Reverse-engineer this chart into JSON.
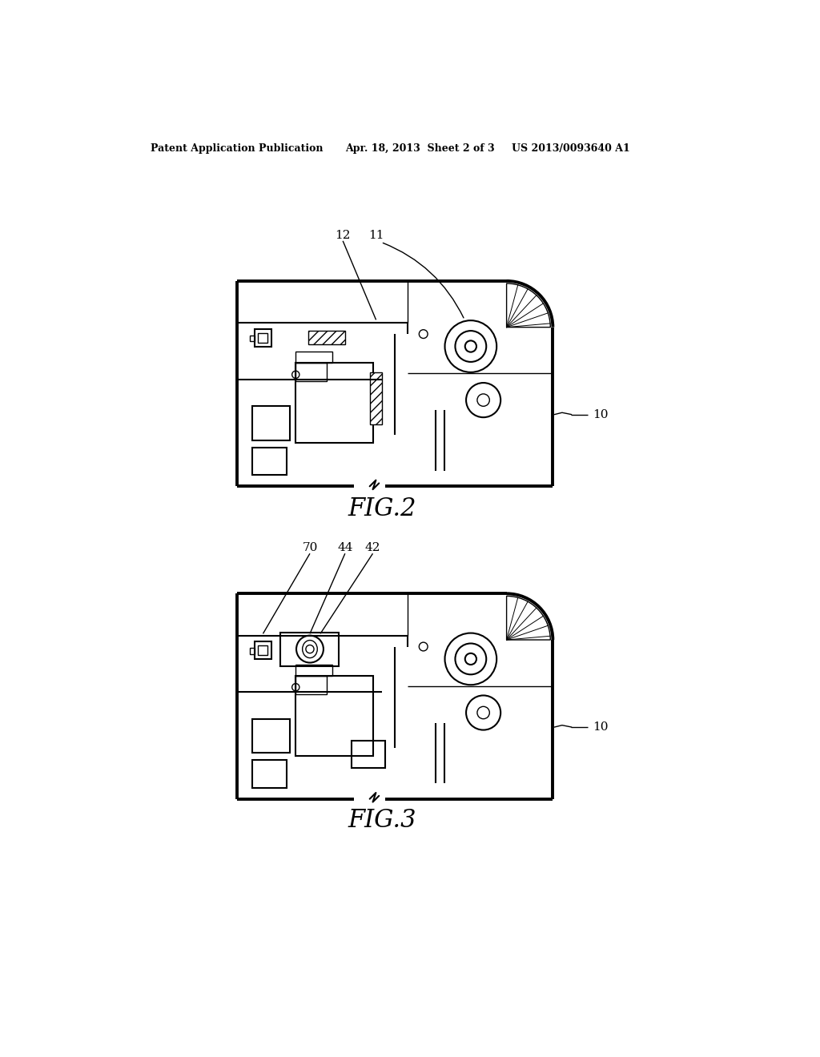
{
  "bg_color": "#ffffff",
  "header_left": "Patent Application Publication",
  "header_mid": "Apr. 18, 2013  Sheet 2 of 3",
  "header_right": "US 2013/0093640 A1",
  "fig2_label": "FIG.2",
  "fig3_label": "FIG.3",
  "lw_border": 2.8,
  "lw": 1.5,
  "lw_thin": 1.0
}
